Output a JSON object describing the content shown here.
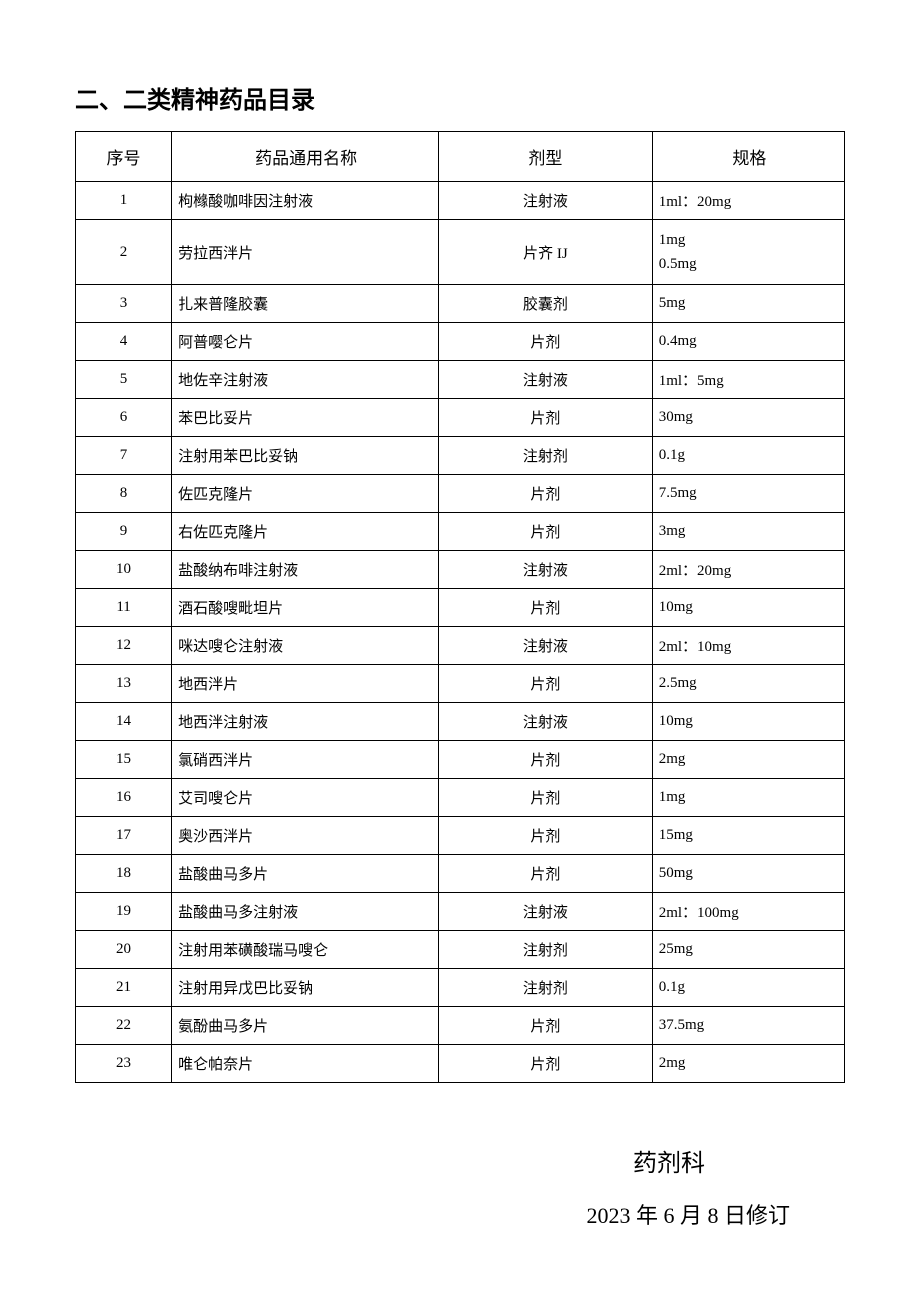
{
  "title": "二、二类精神药品目录",
  "table": {
    "columns": [
      "序号",
      "药品通用名称",
      "剂型",
      "规格"
    ],
    "rows": [
      {
        "idx": "1",
        "name": "枸橼酸咖啡因注射液",
        "form": "注射液",
        "spec": "1ml：20mg"
      },
      {
        "idx": "2",
        "name": "劳拉西泮片",
        "form": "片齐 IJ",
        "spec": "1mg\n0.5mg",
        "tall": true
      },
      {
        "idx": "3",
        "name": "扎来普隆胶囊",
        "form": "胶囊剂",
        "spec": "5mg"
      },
      {
        "idx": "4",
        "name": "阿普嘤仑片",
        "form": "片剂",
        "spec": "0.4mg"
      },
      {
        "idx": "5",
        "name": "地佐辛注射液",
        "form": "注射液",
        "spec": "1ml：5mg"
      },
      {
        "idx": "6",
        "name": "苯巴比妥片",
        "form": "片剂",
        "spec": "30mg"
      },
      {
        "idx": "7",
        "name": "注射用苯巴比妥钠",
        "form": "注射剂",
        "spec": "0.1g"
      },
      {
        "idx": "8",
        "name": "佐匹克隆片",
        "form": "片剂",
        "spec": "7.5mg"
      },
      {
        "idx": "9",
        "name": "右佐匹克隆片",
        "form": "片剂",
        "spec": "3mg"
      },
      {
        "idx": "10",
        "name": "盐酸纳布啡注射液",
        "form": "注射液",
        "spec": "2ml：20mg"
      },
      {
        "idx": "11",
        "name": "酒石酸嗖毗坦片",
        "form": "片剂",
        "spec": "10mg"
      },
      {
        "idx": "12",
        "name": "咪达嗖仑注射液",
        "form": "注射液",
        "spec": "2ml：10mg"
      },
      {
        "idx": "13",
        "name": "地西泮片",
        "form": "片剂",
        "spec": "2.5mg"
      },
      {
        "idx": "14",
        "name": "地西泮注射液",
        "form": "注射液",
        "spec": "10mg"
      },
      {
        "idx": "15",
        "name": "氯硝西泮片",
        "form": "片剂",
        "spec": "2mg"
      },
      {
        "idx": "16",
        "name": "艾司嗖仑片",
        "form": "片剂",
        "spec": "1mg"
      },
      {
        "idx": "17",
        "name": "奥沙西泮片",
        "form": "片剂",
        "spec": "15mg"
      },
      {
        "idx": "18",
        "name": "盐酸曲马多片",
        "form": "片剂",
        "spec": "50mg"
      },
      {
        "idx": "19",
        "name": "盐酸曲马多注射液",
        "form": "注射液",
        "spec": "2ml：100mg"
      },
      {
        "idx": "20",
        "name": "注射用苯磺酸瑞马嗖仑",
        "form": "注射剂",
        "spec": "25mg"
      },
      {
        "idx": "21",
        "name": "注射用异戊巴比妥钠",
        "form": "注射剂",
        "spec": "0.1g"
      },
      {
        "idx": "22",
        "name": "氨酚曲马多片",
        "form": "片剂",
        "spec": "37.5mg"
      },
      {
        "idx": "23",
        "name": "唯仑帕奈片",
        "form": "片剂",
        "spec": "2mg"
      }
    ]
  },
  "footer": {
    "dept": "药剂科",
    "date": "2023 年 6 月 8 日修订"
  }
}
